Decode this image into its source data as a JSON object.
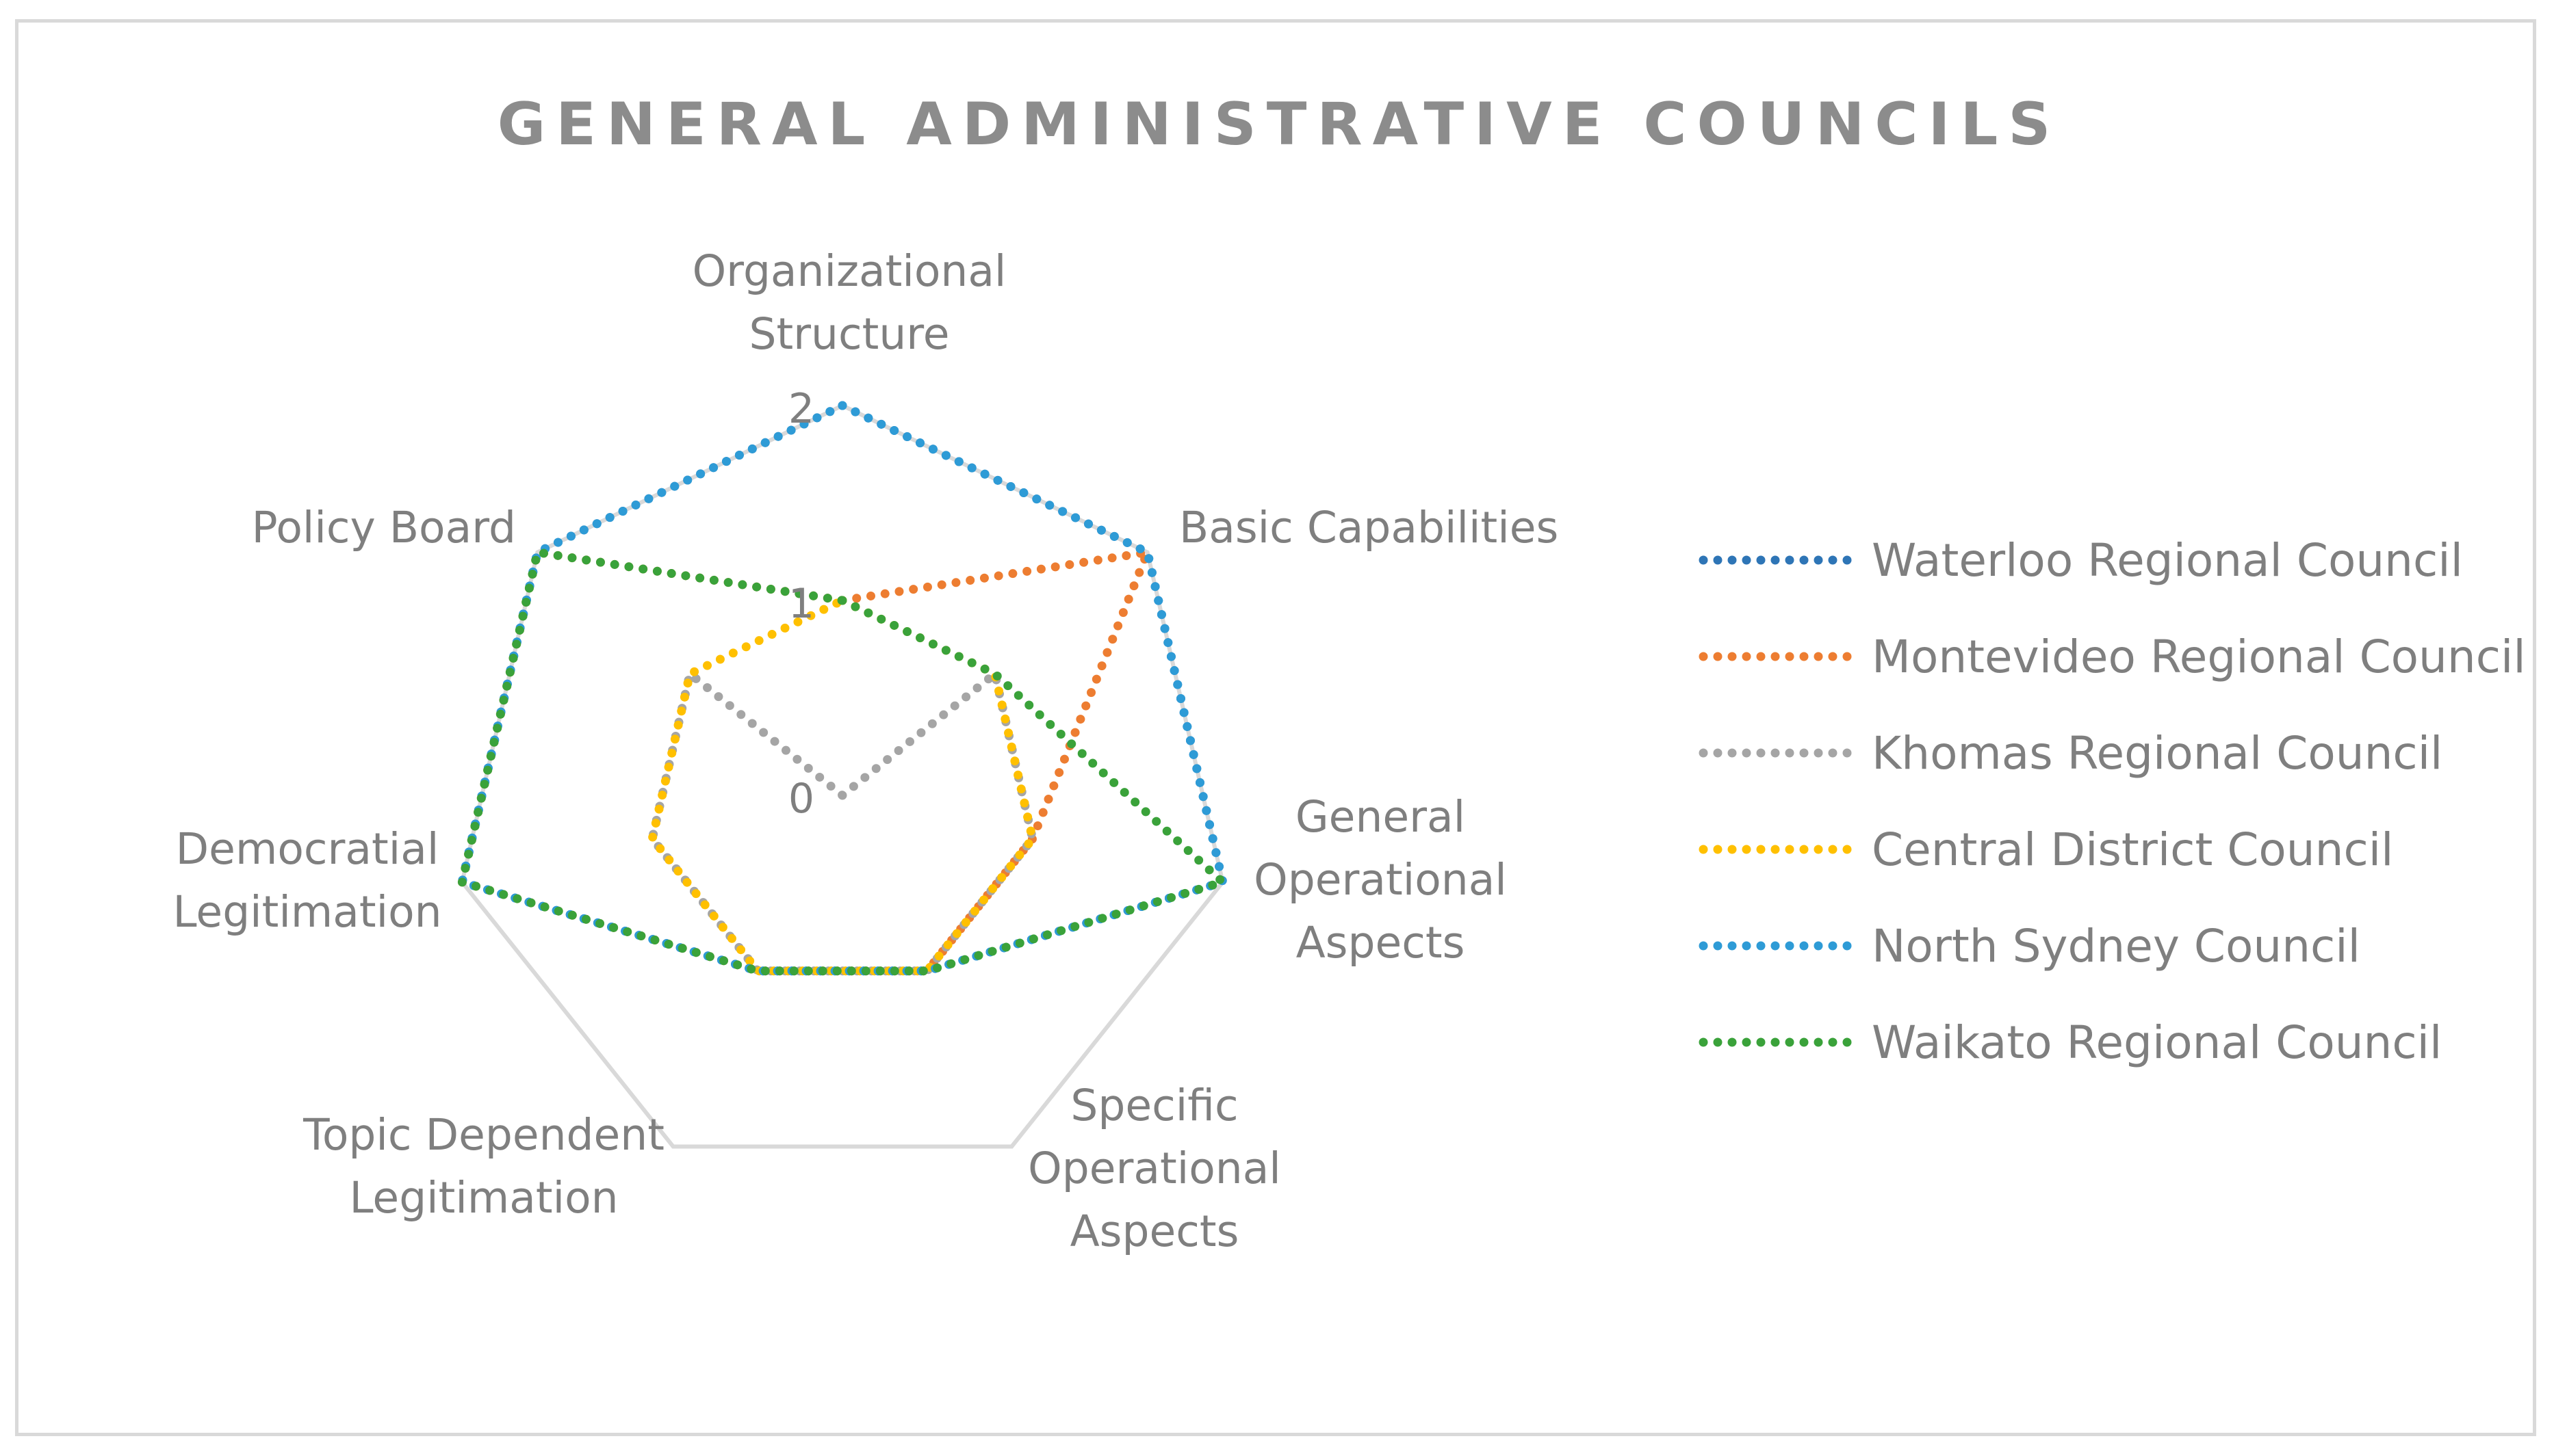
{
  "chart_data": {
    "type": "radar",
    "title": "GENERAL ADMINISTRATIVE COUNCILS",
    "axes": [
      "Organizational Structure",
      "Basic Capabilities",
      "General Operational Aspects",
      "Specific Operational Aspects",
      "Topic Dependent Legitimation",
      "Democratial Legitimation",
      "Policy Board"
    ],
    "axis_label_lines": [
      [
        "Organizational",
        "Structure"
      ],
      [
        "Basic Capabilities"
      ],
      [
        "General",
        "Operational",
        "Aspects"
      ],
      [
        "Specific",
        "Operational",
        "Aspects"
      ],
      [
        "Topic Dependent",
        "Legitimation"
      ],
      [
        "Democratial",
        "Legitimation"
      ],
      [
        "Policy Board"
      ]
    ],
    "rlim": [
      0,
      2
    ],
    "ticks": [
      "0",
      "1",
      "2"
    ],
    "grid": "outer-ring-only",
    "legend_position": "right",
    "series": [
      {
        "name": "Waterloo Regional Council",
        "color": "#2e75b6",
        "values": [
          2,
          2,
          2,
          1,
          1,
          2,
          2
        ]
      },
      {
        "name": "Montevideo Regional Council",
        "color": "#ed7d31",
        "values": [
          1,
          2,
          1,
          1,
          1,
          2,
          2
        ]
      },
      {
        "name": "Khomas Regional Council",
        "color": "#a5a5a5",
        "values": [
          0,
          1,
          1,
          1,
          1,
          1,
          1
        ]
      },
      {
        "name": "Central District Council",
        "color": "#ffc000",
        "values": [
          1,
          1,
          1,
          1,
          1,
          1,
          1
        ]
      },
      {
        "name": "North Sydney Council",
        "color": "#2e9bd6",
        "values": [
          2,
          2,
          2,
          1,
          1,
          2,
          2
        ]
      },
      {
        "name": "Waikato Regional Council",
        "color": "#3aa23a",
        "values": [
          1,
          1,
          2,
          1,
          1,
          2,
          2
        ]
      }
    ]
  }
}
